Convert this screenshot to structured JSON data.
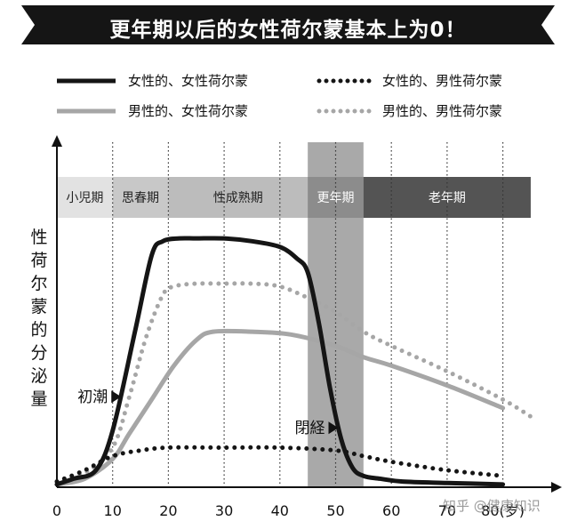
{
  "title": "更年期以后的女性荷尔蒙基本上为0！",
  "watermark": "知乎 @健康知识",
  "colors": {
    "female": "#151515",
    "male": "#a6a6a6"
  },
  "chart_data": {
    "type": "line",
    "title": "更年期以后的女性荷尔蒙基本上为0！",
    "xlabel": "",
    "ylabel": "性荷尔蒙的分泌量",
    "x_unit": "(岁)",
    "xlim": [
      0,
      85
    ],
    "ylim": [
      0,
      100
    ],
    "x_ticks": [
      0,
      10,
      20,
      30,
      40,
      50,
      60,
      70,
      80
    ],
    "grid": "vertical dotted lines at 10-year intervals",
    "legend": "top, two rows",
    "life_stages": [
      {
        "label": "小児期",
        "from": 0,
        "to": 10,
        "color": "#e2e2e2",
        "text_color": "#222222"
      },
      {
        "label": "思春期",
        "from": 10,
        "to": 20,
        "color": "#c8c8c8",
        "text_color": "#222222"
      },
      {
        "label": "性成熟期",
        "from": 20,
        "to": 45,
        "color": "#bcbcbc",
        "text_color": "#222222"
      },
      {
        "label": "更年期",
        "from": 45,
        "to": 55,
        "color": "#8c8c8c",
        "text_color": "#ffffff"
      },
      {
        "label": "老年期",
        "from": 55,
        "to": 85,
        "color": "#545454",
        "text_color": "#ffffff"
      }
    ],
    "menopause_band": [
      45,
      55
    ],
    "annotations": [
      {
        "label": "初潮",
        "x": 12,
        "y": 32
      },
      {
        "label": "閉経",
        "x": 50,
        "y": 21
      }
    ],
    "series": [
      {
        "name": "女性的、女性荷尔蒙",
        "color": "#151515",
        "style": "solid",
        "x": [
          0,
          3,
          7,
          10,
          14,
          17,
          19,
          22,
          25,
          30,
          35,
          40,
          43,
          45,
          47,
          49,
          51,
          53,
          55,
          58,
          62,
          70,
          80
        ],
        "y": [
          1,
          3,
          6,
          20,
          55,
          82,
          87,
          88,
          88,
          88,
          87,
          85,
          81,
          76,
          58,
          35,
          17,
          7,
          4,
          3,
          2,
          1.5,
          1
        ]
      },
      {
        "name": "女性的、男性荷尔蒙",
        "color": "#151515",
        "style": "dotted",
        "x": [
          0,
          5,
          10,
          15,
          20,
          30,
          40,
          50,
          55,
          60,
          70,
          80
        ],
        "y": [
          2,
          6,
          11,
          13,
          14,
          14,
          14,
          13,
          11,
          9,
          6,
          4
        ]
      },
      {
        "name": "男性的、女性荷尔蒙",
        "color": "#a6a6a6",
        "style": "solid",
        "x": [
          0,
          5,
          10,
          13,
          17,
          21,
          25,
          28,
          35,
          42,
          50,
          55,
          60,
          70,
          80
        ],
        "y": [
          1,
          3,
          10,
          19,
          31,
          43,
          52,
          55,
          55,
          54,
          50,
          46,
          43,
          36,
          28
        ]
      },
      {
        "name": "男性的、男性荷尔蒙",
        "color": "#a6a6a6",
        "style": "dotted",
        "x": [
          0,
          5,
          10,
          13,
          16,
          19,
          21,
          25,
          30,
          35,
          40,
          45,
          50,
          55,
          60,
          70,
          80,
          85
        ],
        "y": [
          2,
          5,
          14,
          32,
          53,
          68,
          71,
          72,
          72,
          72,
          71,
          67,
          62,
          55,
          50,
          41,
          31,
          25
        ]
      }
    ]
  }
}
